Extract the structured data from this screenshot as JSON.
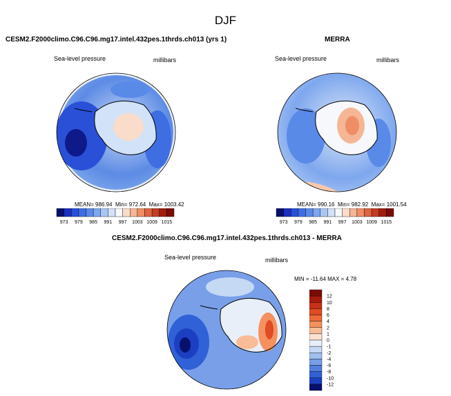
{
  "page_title": "DJF",
  "panels": [
    {
      "title": "CESM2.F2000climo.C96.C96.mg17.intel.432pes.1thrds.ch013 (yrs 1)",
      "variable": "Sea-level pressure",
      "units": "millibars",
      "stats": {
        "mean_label": "MEAN=",
        "mean": "986.94",
        "min_label": "Min=",
        "min": "972.64",
        "max_label": "Max=",
        "max": "1003.42"
      }
    },
    {
      "title": "MERRA",
      "variable": "Sea-level pressure",
      "units": "millibars",
      "stats": {
        "mean_label": "MEAN=",
        "mean": "990.16",
        "min_label": "Min=",
        "min": "982.92",
        "max_label": "Max=",
        "max": "1001.54"
      }
    },
    {
      "title": "CESM2.F2000climo.C96.C96.mg17.intel.432pes.1thrds.ch013 - MERRA",
      "variable": "Sea-level pressure",
      "units": "millibars",
      "stats": {
        "min_label": "MIN =",
        "min": "-11.64",
        "max_label": "MAX =",
        "max": "4.78"
      }
    }
  ],
  "abs_colorbar": {
    "labels": [
      "973",
      "979",
      "985",
      "991",
      "997",
      "1003",
      "1009",
      "1015"
    ],
    "colors": [
      "#08106e",
      "#1c2fc0",
      "#2a50d8",
      "#3f6ee2",
      "#5a8ae8",
      "#7ea7ee",
      "#a8c6f4",
      "#d2e2f8",
      "#f6f8fb",
      "#fadcca",
      "#f5b695",
      "#ef8e66",
      "#dd6342",
      "#c33d24",
      "#a11d10",
      "#7a0c06"
    ]
  },
  "diff_colorbar": {
    "labels": [
      "12",
      "10",
      "8",
      "6",
      "4",
      "2",
      "1",
      "0",
      "-1",
      "-2",
      "-4",
      "-6",
      "-8",
      "-10",
      "-12"
    ],
    "colors": [
      "#7a0c06",
      "#a81a0c",
      "#c93018",
      "#e14a22",
      "#ee6a3a",
      "#f4915f",
      "#f8bc97",
      "#fbe2d0",
      "#e8eff9",
      "#c5d9f5",
      "#9fbff0",
      "#789fe8",
      "#5180df",
      "#3061d6",
      "#1c3fc2",
      "#08106e"
    ]
  },
  "colors": {
    "ocean_low": "#2f5fd8",
    "ocean_mid": "#8fb6ef",
    "ocean_high": "#e6eefa",
    "ridge": "#f8c9ad",
    "coast": "#000000"
  }
}
